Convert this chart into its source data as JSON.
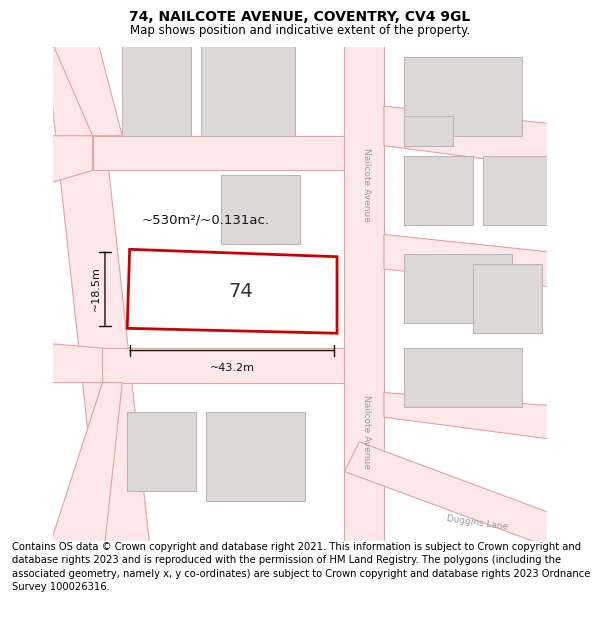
{
  "title": "74, NAILCOTE AVENUE, COVENTRY, CV4 9GL",
  "subtitle": "Map shows position and indicative extent of the property.",
  "title_fontsize": 10,
  "subtitle_fontsize": 8.5,
  "background_color": "#ffffff",
  "footer_text": "Contains OS data © Crown copyright and database right 2021. This information is subject to Crown copyright and database rights 2023 and is reproduced with the permission of HM Land Registry. The polygons (including the associated geometry, namely x, y co-ordinates) are subject to Crown copyright and database rights 2023 Ordnance Survey 100026316.",
  "footer_fontsize": 7.2,
  "road_fill": "#fce8e8",
  "road_edge": "#e8a0a0",
  "road_lw": 0.8,
  "building_fill": "#ddd8d8",
  "building_edge": "#bbb0b0",
  "building_lw": 0.7,
  "subject_fill": "#ffffff",
  "subject_edge": "#cc0000",
  "subject_lw": 2.0,
  "dim_color": "#111111",
  "road_label_color": "#999999",
  "area_label": "~530m²/~0.131ac.",
  "number_label": "74",
  "dim_width": "~43.2m",
  "dim_height": "~18.5m"
}
